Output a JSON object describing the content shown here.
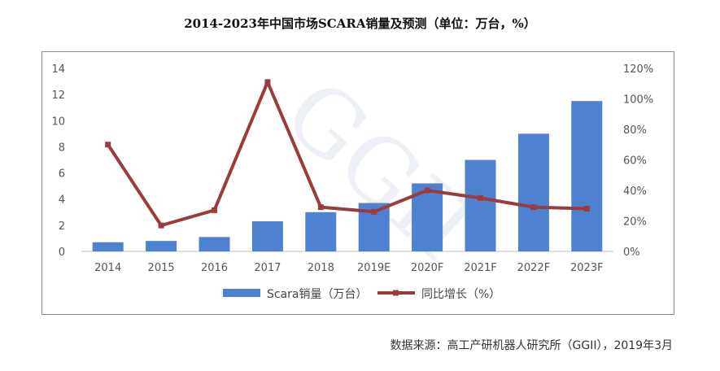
{
  "title": "2014-2023年中国市场SCARA销量及预测（单位：万台，%）",
  "source": "数据来源：高工产研机器人研究所（GGII），2019年3月",
  "watermark": "GGII",
  "chart_data": {
    "type": "bar",
    "categories": [
      "2014",
      "2015",
      "2016",
      "2017",
      "2018",
      "2019E",
      "2020F",
      "2021F",
      "2022F",
      "2023F"
    ],
    "series": [
      {
        "name": "Scara销量（万台）",
        "type": "bar",
        "axis": "left",
        "color": "#4f81d1",
        "values": [
          0.7,
          0.8,
          1.1,
          2.3,
          3.0,
          3.7,
          5.2,
          7.0,
          9.0,
          11.5
        ]
      },
      {
        "name": "同比增长（%）",
        "type": "line",
        "axis": "right",
        "color": "#9b3b3b",
        "values": [
          70,
          17,
          27,
          111,
          29,
          26,
          40,
          35,
          29,
          28
        ]
      }
    ],
    "y_left": {
      "ylim": [
        0,
        14
      ],
      "ticks": [
        "0",
        "2",
        "4",
        "6",
        "8",
        "10",
        "12",
        "14"
      ]
    },
    "y_right": {
      "ylim": [
        0,
        120
      ],
      "ticks": [
        "0%",
        "20%",
        "40%",
        "60%",
        "80%",
        "100%",
        "120%"
      ]
    },
    "legend_position": "bottom",
    "grid": false
  }
}
